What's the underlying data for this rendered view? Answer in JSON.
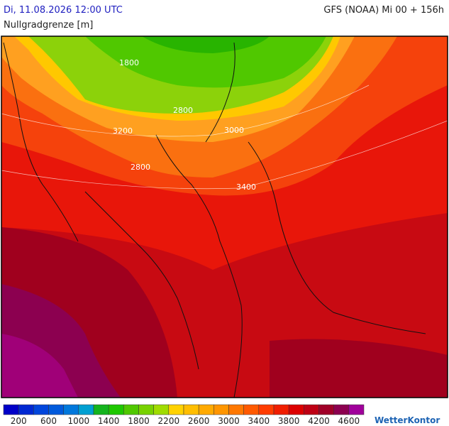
{
  "header": {
    "datetime": "Di, 11.08.2026 12:00 UTC",
    "model": "GFS (NOAA) Mi 00 + 156h",
    "parameter": "Nullgradgrenze [m]"
  },
  "map": {
    "contour_labels": [
      "1800",
      "2800",
      "3200",
      "3000",
      "2800",
      "3400"
    ]
  },
  "legend": {
    "labels": [
      200,
      600,
      1000,
      1400,
      1800,
      2200,
      2600,
      3000,
      3400,
      3800,
      4200,
      4600
    ],
    "colors": [
      "#0000c8",
      "#0028d2",
      "#0046dc",
      "#005adc",
      "#0078dc",
      "#00a0d2",
      "#14b41e",
      "#1ec800",
      "#50c800",
      "#78d200",
      "#a0dc00",
      "#ffd200",
      "#ffbe00",
      "#ffaa00",
      "#ff9600",
      "#ff7800",
      "#ff5a00",
      "#ff3c00",
      "#f01e00",
      "#dc0000",
      "#be0014",
      "#a00028",
      "#8c0050",
      "#a0009b"
    ]
  },
  "brand": "WetterKontor"
}
